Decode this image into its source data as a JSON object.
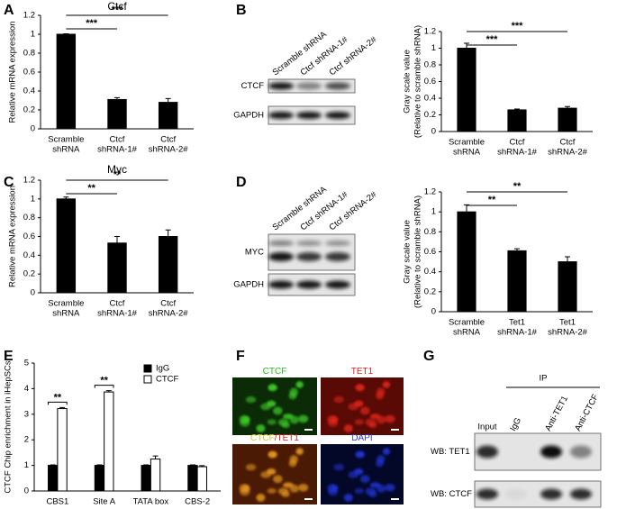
{
  "panel_labels": [
    "A",
    "B",
    "C",
    "D",
    "E",
    "F",
    "G"
  ],
  "chart_data": [
    {
      "type": "bar",
      "title": "Ctcf",
      "y_label": [
        "Relative mRNA expression"
      ],
      "categories": [
        [
          "Scramble",
          "shRNA"
        ],
        [
          "Ctcf",
          "shRNA-1#"
        ],
        [
          "Ctcf",
          "shRNA-2#"
        ]
      ],
      "values": [
        1,
        0.31,
        0.28
      ],
      "errors": [
        0.005,
        0.02,
        0.04
      ],
      "color": "#000000",
      "ylim": [
        0,
        1.2
      ],
      "yticks": [
        0,
        0.2,
        0.4,
        0.6,
        0.8,
        1,
        1.2
      ],
      "significance": [
        "***",
        "***"
      ]
    },
    {
      "type": "bar",
      "y_label": [
        "Gray scale value",
        "(Relative to scramble shRNA)"
      ],
      "categories": [
        [
          "Scramble",
          "shRNA"
        ],
        [
          "Ctcf",
          "shRNA-1#"
        ],
        [
          "Ctcf",
          "shRNA-2#"
        ]
      ],
      "values": [
        1,
        0.26,
        0.28
      ],
      "errors": [
        0.06,
        0.01,
        0.02
      ],
      "color": "#000000",
      "ylim": [
        0,
        1.2
      ],
      "yticks": [
        0,
        0.2,
        0.4,
        0.6,
        0.8,
        1,
        1.2
      ],
      "significance": [
        "***",
        "***"
      ]
    },
    {
      "type": "bar",
      "title": "Myc",
      "y_label": [
        "Relative mRNA expression"
      ],
      "categories": [
        [
          "Scramble",
          "shRNA"
        ],
        [
          "Ctcf",
          "shRNA-1#"
        ],
        [
          "Ctcf",
          "shRNA-2#"
        ]
      ],
      "values": [
        1,
        0.53,
        0.6
      ],
      "errors": [
        0.02,
        0.07,
        0.07
      ],
      "color": "#000000",
      "ylim": [
        0,
        1.2
      ],
      "yticks": [
        0,
        0.2,
        0.4,
        0.6,
        0.8,
        1,
        1.2
      ],
      "significance": [
        "**",
        "**"
      ]
    },
    {
      "type": "bar",
      "y_label": [
        "Gray scale value",
        "(Relative to scramble shRNA)"
      ],
      "categories": [
        [
          "Scramble",
          "shRNA"
        ],
        [
          "Tet1",
          "shRNA-1#"
        ],
        [
          "Tet1",
          "shRNA-2#"
        ]
      ],
      "values": [
        1,
        0.61,
        0.5
      ],
      "errors": [
        0.07,
        0.02,
        0.05
      ],
      "color": "#000000",
      "ylim": [
        0,
        1.2
      ],
      "yticks": [
        0,
        0.2,
        0.4,
        0.6,
        0.8,
        1,
        1.2
      ],
      "significance": [
        "**",
        "**"
      ]
    },
    {
      "type": "bar",
      "y_label": [
        "CTCF Chip enrichment in iHepSCs"
      ],
      "categories": [
        [
          "CBS1"
        ],
        [
          "Site A"
        ],
        [
          "TATA box"
        ],
        [
          "CBS-2"
        ]
      ],
      "series": [
        {
          "name": "IgG",
          "color": "#000000",
          "values": [
            1,
            1,
            1,
            1
          ],
          "errors": [
            0.02,
            0.02,
            0.02,
            0.02
          ]
        },
        {
          "name": "CTCF",
          "color": "#ffffff",
          "values": [
            3.22,
            3.87,
            1.25,
            0.95
          ],
          "errors": [
            0.04,
            0.05,
            0.12,
            0.04
          ]
        }
      ],
      "ylim": [
        0,
        5
      ],
      "yticks": [
        0,
        1,
        2,
        3,
        4,
        5
      ],
      "significance": [
        "**",
        "**",
        null,
        null
      ],
      "legend": "upper right"
    }
  ],
  "blots": [
    {
      "lanes": [
        "Scramble shRNA",
        "Ctcf shRNA-1#",
        "Ctcf shRNA-2#"
      ],
      "rows": [
        "CTCF",
        "GAPDH"
      ]
    },
    {
      "lanes": [
        "Scramble shRNA",
        "Ctcf shRNA-1#",
        "Ctcf shRNA-2#"
      ],
      "rows": [
        "MYC",
        "GAPDH"
      ]
    }
  ],
  "immunofluorescence": {
    "labels": [
      [
        "CTCF"
      ],
      [
        "TET1"
      ],
      [
        "CTCF",
        "/TET1"
      ],
      [
        "DAPI"
      ]
    ]
  },
  "ip_blot": {
    "header": "IP",
    "lanes": [
      "Input",
      "IgG",
      "Anti-TET1",
      "Anti-CTCF"
    ],
    "rows": [
      "WB: TET1",
      "WB: CTCF"
    ]
  }
}
